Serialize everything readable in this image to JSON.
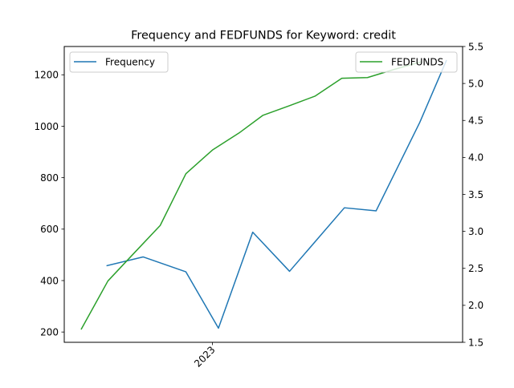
{
  "chart_data": {
    "type": "line",
    "title": "Frequency and FEDFUNDS for Keyword: credit",
    "xlabel": "",
    "x_tick_labels": [
      "2023"
    ],
    "x": [
      "2022-09",
      "2022-10",
      "2022-11",
      "2022-12",
      "2023-01",
      "2023-02",
      "2023-03",
      "2023-04",
      "2023-05",
      "2023-06",
      "2023-07",
      "2023-08",
      "2023-09",
      "2023-10"
    ],
    "left_axis": {
      "ylabel": "",
      "ylim": [
        160,
        1310
      ],
      "ticks": [
        200,
        400,
        600,
        800,
        1000,
        1200
      ]
    },
    "right_axis": {
      "ylabel": "",
      "ylim": [
        1.5,
        5.5
      ],
      "ticks": [
        1.5,
        2.0,
        2.5,
        3.0,
        3.5,
        4.0,
        4.5,
        5.0,
        5.5
      ]
    },
    "series": [
      {
        "name": "Frequency",
        "axis": "left",
        "color": "#1f77b4",
        "points": [
          {
            "x": "2022-08-31",
            "y": 458
          },
          {
            "x": "2022-10-12",
            "y": 492
          },
          {
            "x": "2022-12-01",
            "y": 434
          },
          {
            "x": "2023-01-08",
            "y": 215
          },
          {
            "x": "2023-02-17",
            "y": 588
          },
          {
            "x": "2023-04-01",
            "y": 436
          },
          {
            "x": "2023-06-04",
            "y": 683
          },
          {
            "x": "2023-07-11",
            "y": 671
          },
          {
            "x": "2023-08-31",
            "y": 1015
          },
          {
            "x": "2023-10-01",
            "y": 1255
          }
        ]
      },
      {
        "name": "FEDFUNDS",
        "axis": "right",
        "color": "#2ca02c",
        "points": [
          {
            "x": "2022-08-01",
            "y": 1.68
          },
          {
            "x": "2022-09-01",
            "y": 2.33
          },
          {
            "x": "2022-10-01",
            "y": 2.7
          },
          {
            "x": "2022-11-01",
            "y": 3.08
          },
          {
            "x": "2022-12-01",
            "y": 3.78
          },
          {
            "x": "2023-01-01",
            "y": 4.1
          },
          {
            "x": "2023-02-01",
            "y": 4.33
          },
          {
            "x": "2023-03-01",
            "y": 4.57
          },
          {
            "x": "2023-04-01",
            "y": 4.7
          },
          {
            "x": "2023-05-01",
            "y": 4.83
          },
          {
            "x": "2023-06-01",
            "y": 5.07
          },
          {
            "x": "2023-07-01",
            "y": 5.08
          },
          {
            "x": "2023-08-01",
            "y": 5.19
          },
          {
            "x": "2023-09-01",
            "y": 5.29
          }
        ]
      }
    ],
    "legends": [
      {
        "placement": "upper-left",
        "entries": [
          "Frequency"
        ]
      },
      {
        "placement": "upper-right",
        "entries": [
          "FEDFUNDS"
        ]
      }
    ],
    "grid": false
  }
}
